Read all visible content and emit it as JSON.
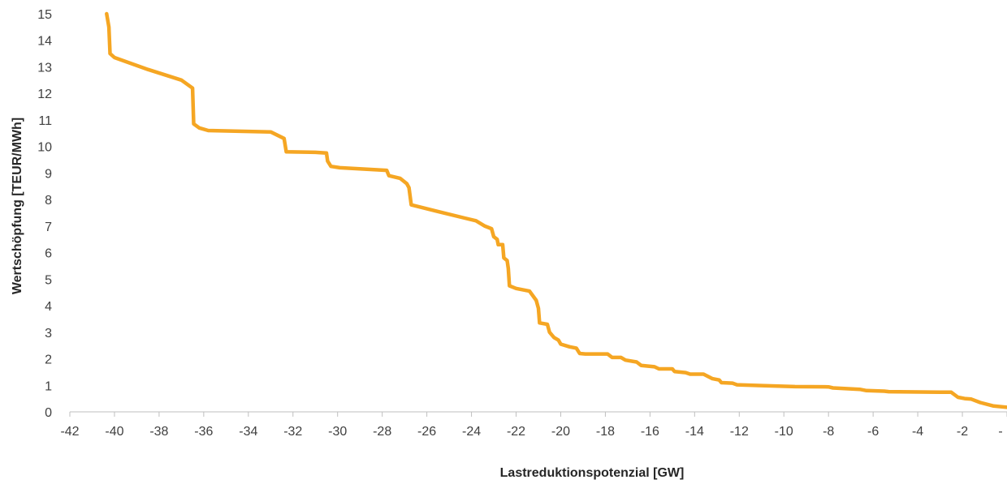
{
  "chart_data": {
    "type": "line",
    "title": "",
    "xlabel": "Lastreduktionspotenzial [GW]",
    "ylabel": "Wertschöpfung [TEUR/MWh]",
    "xlim": [
      -42,
      0
    ],
    "ylim": [
      0,
      15
    ],
    "x_ticks": [
      -42,
      -40,
      -38,
      -36,
      -34,
      -32,
      -30,
      -28,
      -26,
      -24,
      -22,
      -20,
      -18,
      -16,
      -14,
      -12,
      -10,
      -8,
      -6,
      -4,
      -2,
      0
    ],
    "x_tick_labels": [
      "-42",
      "-40",
      "-38",
      "-36",
      "-34",
      "-32",
      "-30",
      "-28",
      "-26",
      "-24",
      "-22",
      "-20",
      "-18",
      "-16",
      "-14",
      "-12",
      "-10",
      "-8",
      "-6",
      "-4",
      "-2",
      "-"
    ],
    "y_ticks": [
      0,
      1,
      2,
      3,
      4,
      5,
      6,
      7,
      8,
      9,
      10,
      11,
      12,
      13,
      14,
      15
    ],
    "grid": false,
    "legend": "none",
    "series": [
      {
        "color": "#F5A623",
        "points": [
          [
            -40.35,
            15.0
          ],
          [
            -40.25,
            14.5
          ],
          [
            -40.2,
            13.5
          ],
          [
            -40.0,
            13.35
          ],
          [
            -38.5,
            12.9
          ],
          [
            -37.0,
            12.5
          ],
          [
            -36.5,
            12.2
          ],
          [
            -36.45,
            10.85
          ],
          [
            -36.2,
            10.7
          ],
          [
            -35.8,
            10.6
          ],
          [
            -33.0,
            10.55
          ],
          [
            -32.4,
            10.3
          ],
          [
            -32.3,
            9.8
          ],
          [
            -31.0,
            9.78
          ],
          [
            -30.5,
            9.75
          ],
          [
            -30.45,
            9.45
          ],
          [
            -30.3,
            9.25
          ],
          [
            -29.9,
            9.2
          ],
          [
            -27.8,
            9.1
          ],
          [
            -27.7,
            8.9
          ],
          [
            -27.2,
            8.8
          ],
          [
            -26.9,
            8.6
          ],
          [
            -26.8,
            8.45
          ],
          [
            -26.7,
            7.8
          ],
          [
            -25.5,
            7.55
          ],
          [
            -24.3,
            7.3
          ],
          [
            -23.8,
            7.2
          ],
          [
            -23.4,
            7.0
          ],
          [
            -23.1,
            6.9
          ],
          [
            -23.0,
            6.6
          ],
          [
            -22.85,
            6.5
          ],
          [
            -22.8,
            6.3
          ],
          [
            -22.6,
            6.3
          ],
          [
            -22.55,
            5.8
          ],
          [
            -22.4,
            5.7
          ],
          [
            -22.35,
            5.4
          ],
          [
            -22.3,
            4.75
          ],
          [
            -22.0,
            4.65
          ],
          [
            -21.4,
            4.55
          ],
          [
            -21.1,
            4.2
          ],
          [
            -21.0,
            3.9
          ],
          [
            -20.95,
            3.35
          ],
          [
            -20.6,
            3.3
          ],
          [
            -20.5,
            3.0
          ],
          [
            -20.3,
            2.8
          ],
          [
            -20.1,
            2.7
          ],
          [
            -20.0,
            2.55
          ],
          [
            -19.6,
            2.45
          ],
          [
            -19.3,
            2.4
          ],
          [
            -19.15,
            2.2
          ],
          [
            -18.9,
            2.18
          ],
          [
            -17.9,
            2.18
          ],
          [
            -17.7,
            2.05
          ],
          [
            -17.3,
            2.05
          ],
          [
            -17.1,
            1.95
          ],
          [
            -16.6,
            1.88
          ],
          [
            -16.4,
            1.75
          ],
          [
            -15.8,
            1.7
          ],
          [
            -15.6,
            1.62
          ],
          [
            -15.0,
            1.62
          ],
          [
            -14.9,
            1.52
          ],
          [
            -14.4,
            1.48
          ],
          [
            -14.2,
            1.42
          ],
          [
            -13.6,
            1.42
          ],
          [
            -13.2,
            1.25
          ],
          [
            -12.9,
            1.2
          ],
          [
            -12.8,
            1.1
          ],
          [
            -12.3,
            1.08
          ],
          [
            -12.1,
            1.02
          ],
          [
            -11.0,
            0.99
          ],
          [
            -9.5,
            0.95
          ],
          [
            -8.0,
            0.94
          ],
          [
            -7.8,
            0.9
          ],
          [
            -6.6,
            0.85
          ],
          [
            -6.3,
            0.8
          ],
          [
            -5.5,
            0.78
          ],
          [
            -5.3,
            0.76
          ],
          [
            -3.0,
            0.74
          ],
          [
            -2.5,
            0.74
          ],
          [
            -2.2,
            0.55
          ],
          [
            -1.9,
            0.5
          ],
          [
            -1.6,
            0.48
          ],
          [
            -1.2,
            0.35
          ],
          [
            -0.6,
            0.22
          ],
          [
            0.0,
            0.17
          ]
        ]
      }
    ]
  }
}
